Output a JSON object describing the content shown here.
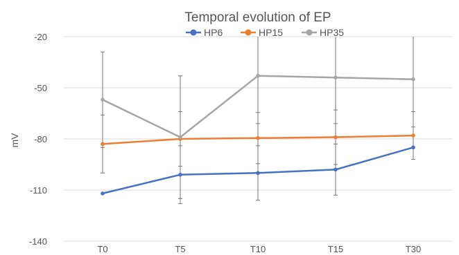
{
  "chart_data": {
    "type": "line",
    "title": "Temporal evolution of EP",
    "xlabel": "",
    "ylabel": "mV",
    "categories": [
      "T0",
      "T5",
      "T10",
      "T15",
      "T30"
    ],
    "ylim": [
      -140,
      -20
    ],
    "yticks": [
      -20,
      -50,
      -80,
      -110,
      -140
    ],
    "grid": true,
    "legend_position": "top",
    "series": [
      {
        "name": "HP6",
        "color": "#4472C4",
        "values": [
          -112,
          -101,
          -100,
          -98,
          -85
        ],
        "error": [
          null,
          17,
          16,
          15,
          null
        ]
      },
      {
        "name": "HP15",
        "color": "#ED7D31",
        "values": [
          -83,
          -80,
          -79.5,
          -79,
          -78
        ],
        "error": [
          17,
          16,
          15,
          16,
          14
        ]
      },
      {
        "name": "HP35",
        "color": "#A5A5A5",
        "values": [
          -57,
          -79,
          -43,
          -44,
          -45
        ],
        "error": [
          28,
          36,
          28,
          27,
          28
        ]
      }
    ]
  }
}
